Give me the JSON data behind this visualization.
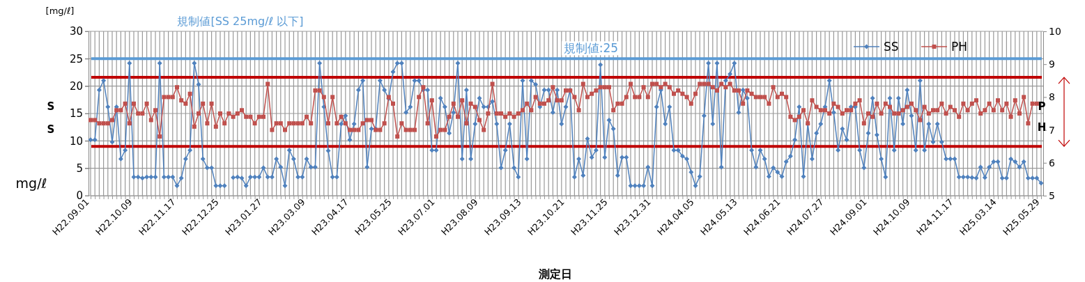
{
  "chart_data": {
    "type": "line",
    "xlabel": "測定日",
    "ylabel": "SS",
    "y2label": "PH",
    "annotations": [
      "規制値[SS 25mg/ℓ 以下]",
      "[mg/ℓ]",
      "mg/ℓ"
    ],
    "categories": [
      "H22.09.01",
      null,
      null,
      null,
      null,
      null,
      null,
      null,
      null,
      null,
      "H22.10.09",
      null,
      null,
      null,
      null,
      null,
      null,
      null,
      null,
      null,
      "H22.11.17",
      null,
      null,
      null,
      null,
      null,
      null,
      null,
      null,
      null,
      "H22.12.25",
      null,
      null,
      null,
      null,
      null,
      null,
      null,
      null,
      null,
      "H23.01.27",
      null,
      null,
      null,
      null,
      null,
      null,
      null,
      null,
      null,
      "H23.03.09",
      null,
      null,
      null,
      null,
      null,
      null,
      null,
      null,
      null,
      "H23.04.17",
      null,
      null,
      null,
      null,
      null,
      null,
      null,
      null,
      null,
      "H23.05.25",
      null,
      null,
      null,
      null,
      null,
      null,
      null,
      null,
      null,
      "H23.07.01",
      null,
      null,
      null,
      null,
      null,
      null,
      null,
      null,
      null,
      "H23.08.09",
      null,
      null,
      null,
      null,
      null,
      null,
      null,
      null,
      null,
      "H23.09.13",
      null,
      null,
      null,
      null,
      null,
      null,
      null,
      null,
      null,
      "H23.10.21",
      null,
      null,
      null,
      null,
      null,
      null,
      null,
      null,
      null,
      "H23.11.25",
      null,
      null,
      null,
      null,
      null,
      null,
      null,
      null,
      null,
      "H23.12.31",
      null,
      null,
      null,
      null,
      null,
      null,
      null,
      null,
      null,
      "H24.04.05",
      null,
      null,
      null,
      null,
      null,
      null,
      null,
      null,
      null,
      "H24.05.13",
      null,
      null,
      null,
      null,
      null,
      null,
      null,
      null,
      null,
      "H24.06.21",
      null,
      null,
      null,
      null,
      null,
      null,
      null,
      null,
      null,
      "H24.07.27",
      null,
      null,
      null,
      null,
      null,
      null,
      null,
      null,
      null,
      "H24.09.01",
      null,
      null,
      null,
      null,
      null,
      null,
      null,
      null,
      null,
      "H24.10.09",
      null,
      null,
      null,
      null,
      null,
      null,
      null,
      null,
      null,
      "H24.11.17",
      null,
      null,
      null,
      null,
      null,
      null,
      null,
      null,
      null,
      "H25.03.14",
      null,
      null,
      null,
      null,
      null,
      null,
      null,
      null,
      null,
      "H25.05.29"
    ],
    "series": [
      {
        "name": "SS",
        "color": "#4f81bd",
        "marker": "diamond",
        "values": [
          10.2,
          10.2,
          19.3,
          21,
          16.2,
          9.8,
          16.2,
          6.7,
          8.3,
          24.2,
          3.4,
          3.4,
          3.2,
          3.4,
          3.4,
          3.4,
          24.2,
          3.4,
          3.4,
          3.4,
          1.8,
          3.2,
          6.7,
          8.3,
          24.2,
          20.3,
          6.7,
          5.1,
          5.1,
          1.8,
          1.8,
          1.8,
          null,
          3.3,
          3.4,
          3.2,
          1.8,
          3.4,
          3.4,
          3.4,
          5.1,
          3.4,
          3.4,
          6.7,
          5.2,
          1.8,
          8.3,
          6.7,
          3.4,
          3.4,
          6.7,
          5.2,
          5.2,
          24.2,
          16.2,
          8.2,
          3.4,
          3.4,
          13.1,
          14.6,
          10.2,
          13.1,
          19.3,
          21,
          5.2,
          12.2,
          12.2,
          21,
          19.3,
          17.7,
          22.6,
          24.2,
          24.2,
          15.2,
          16.2,
          21,
          21,
          19.3,
          19.3,
          8.3,
          8.3,
          17.8,
          16.2,
          11.4,
          15.2,
          24.2,
          6.7,
          19.3,
          6.7,
          13.1,
          17.8,
          16.2,
          16.2,
          17.2,
          13.1,
          5.1,
          8.3,
          13.1,
          5.1,
          3.4,
          21,
          6.7,
          21,
          20.3,
          16.2,
          19.3,
          19.3,
          15.2,
          19.3,
          13.1,
          16.2,
          19.3,
          3.4,
          6.7,
          3.7,
          10.4,
          7.0,
          8.3,
          23.9,
          7.0,
          13.8,
          12.2,
          3.7,
          7.0,
          7.0,
          1.8,
          1.8,
          1.8,
          1.8,
          5.2,
          1.8,
          16.2,
          19.3,
          13.1,
          16.2,
          8.3,
          8.3,
          7.2,
          6.7,
          4.3,
          1.8,
          3.5,
          14.6,
          24.2,
          13.1,
          24.2,
          5.2,
          21,
          22.2,
          24.2,
          15.2,
          19.3,
          17.8,
          8.3,
          5.2,
          8.3,
          6.7,
          3.5,
          5.1,
          4.3,
          3.5,
          6.2,
          7.2,
          10.2,
          16.2,
          3.5,
          13.1,
          6.7,
          11.4,
          13.1,
          16.2,
          21,
          15.2,
          8.3,
          12.2,
          10.2,
          16.2,
          16.2,
          8.3,
          5.1,
          11.4,
          17.8,
          11.1,
          6.7,
          3.4,
          17.8,
          8.3,
          17.8,
          13.1,
          19.3,
          14.6,
          8.3,
          21,
          8.3,
          13.1,
          9.8,
          13.1,
          9.8,
          6.7,
          6.7,
          6.7,
          3.4,
          3.4,
          3.4,
          3.3,
          3.2,
          5.2,
          3.3,
          5.2,
          6.2,
          6.2,
          3.2,
          3.2,
          6.7,
          6.2,
          5.2,
          6.2,
          3.2,
          3.2,
          3.2,
          2.3
        ]
      },
      {
        "name": "PH",
        "color": "#c0504d",
        "marker": "square",
        "axis": "y2",
        "values": [
          7.3,
          7.3,
          7.2,
          7.2,
          7.2,
          7.3,
          7.6,
          7.6,
          7.8,
          7.2,
          7.8,
          7.5,
          7.5,
          7.8,
          7.3,
          7.6,
          6.8,
          8.0,
          8.0,
          8.0,
          8.3,
          7.9,
          7.8,
          8.1,
          7.1,
          7.5,
          7.8,
          7.2,
          7.8,
          7.1,
          7.5,
          7.2,
          7.5,
          7.4,
          7.5,
          7.6,
          7.4,
          7.4,
          7.2,
          7.4,
          7.4,
          8.4,
          7.0,
          7.2,
          7.2,
          7.0,
          7.2,
          7.2,
          7.2,
          7.2,
          7.4,
          7.2,
          8.2,
          8.2,
          8.0,
          7.2,
          8.0,
          7.2,
          7.4,
          7.2,
          7.0,
          7.0,
          7.0,
          7.2,
          7.3,
          7.3,
          7.0,
          7.0,
          7.2,
          8.0,
          7.8,
          6.8,
          7.2,
          7.0,
          7.0,
          7.0,
          8.0,
          8.3,
          7.2,
          7.9,
          6.8,
          7.0,
          7.0,
          7.4,
          7.8,
          7.4,
          7.9,
          7.2,
          7.8,
          7.7,
          7.3,
          7.0,
          7.5,
          8.4,
          7.5,
          7.5,
          7.4,
          7.5,
          7.4,
          7.5,
          7.6,
          7.8,
          7.6,
          8.0,
          7.8,
          7.8,
          7.9,
          8.3,
          7.9,
          7.9,
          8.2,
          8.2,
          8.0,
          7.6,
          8.4,
          8.0,
          8.1,
          8.2,
          8.3,
          8.3,
          8.3,
          7.6,
          7.8,
          7.8,
          8.0,
          8.4,
          8.0,
          8.0,
          8.3,
          8.0,
          8.4,
          8.4,
          8.3,
          8.4,
          8.3,
          8.1,
          8.2,
          8.1,
          8.0,
          7.8,
          8.1,
          8.4,
          8.4,
          8.4,
          8.3,
          8.2,
          8.4,
          8.3,
          8.4,
          8.2,
          8.2,
          7.8,
          8.2,
          8.1,
          8.0,
          8.0,
          8.0,
          7.8,
          8.3,
          8.0,
          8.1,
          8.0,
          7.4,
          7.3,
          7.4,
          7.6,
          7.2,
          7.9,
          7.7,
          7.6,
          7.6,
          7.5,
          7.8,
          7.7,
          7.5,
          7.6,
          7.6,
          7.8,
          7.9,
          7.2,
          7.5,
          7.4,
          7.8,
          7.5,
          7.8,
          7.7,
          7.5,
          7.5,
          7.6,
          7.7,
          7.8,
          7.6,
          7.3,
          7.7,
          7.5,
          7.6,
          7.6,
          7.8,
          7.5,
          7.7,
          7.6,
          7.4,
          7.8,
          7.6,
          7.8,
          7.9,
          7.5,
          7.6,
          7.8,
          7.6,
          7.9,
          7.6,
          7.8,
          7.4,
          7.9,
          7.5,
          8.0,
          7.2,
          7.8,
          7.8,
          null
        ]
      }
    ],
    "ylim": [
      0,
      30
    ],
    "yticks": [
      0,
      5,
      10,
      15,
      20,
      25,
      30
    ],
    "y2lim": [
      5,
      10
    ],
    "y2ticks": [
      5,
      6,
      7,
      8,
      9,
      10
    ],
    "ref_lines": [
      {
        "axis": "y",
        "value": 25,
        "label": "規制値:25",
        "color": "#5b9bd5"
      },
      {
        "axis": "y2",
        "value": 8.6,
        "label": null,
        "color": "#c00000"
      },
      {
        "axis": "y2",
        "value": 6.5,
        "label": null,
        "color": "#c00000"
      }
    ],
    "grid": true,
    "legend": "top right",
    "line_style": "solid"
  }
}
